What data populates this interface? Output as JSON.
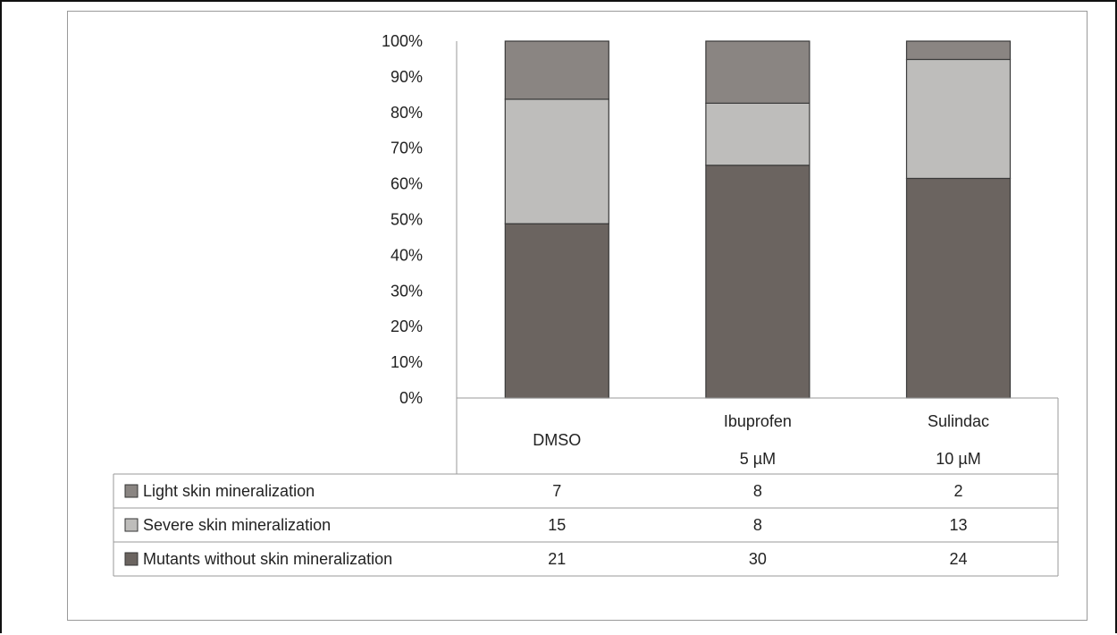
{
  "chart_data": {
    "type": "bar",
    "stacked": "percent",
    "categories": [
      {
        "line1": "DMSO",
        "line2": ""
      },
      {
        "line1": "Ibuprofen",
        "line2": "5 µM"
      },
      {
        "line1": "Sulindac",
        "line2": "10 µM"
      }
    ],
    "series": [
      {
        "name": "Mutants without skin mineralization",
        "values": [
          21,
          30,
          24
        ],
        "color": "#6b6460"
      },
      {
        "name": "Severe skin mineralization",
        "values": [
          15,
          8,
          13
        ],
        "color": "#bebdbb"
      },
      {
        "name": "Light skin mineralization",
        "values": [
          7,
          8,
          2
        ],
        "color": "#8a8582"
      }
    ],
    "table_rows_order": [
      "Light skin mineralization",
      "Severe skin mineralization",
      "Mutants without skin mineralization"
    ],
    "y_ticks": [
      "0%",
      "10%",
      "20%",
      "30%",
      "40%",
      "50%",
      "60%",
      "70%",
      "80%",
      "90%",
      "100%"
    ],
    "ylim": [
      0,
      100
    ],
    "title": "",
    "xlabel": "",
    "ylabel": "",
    "grid": false,
    "legend": "data-table"
  }
}
